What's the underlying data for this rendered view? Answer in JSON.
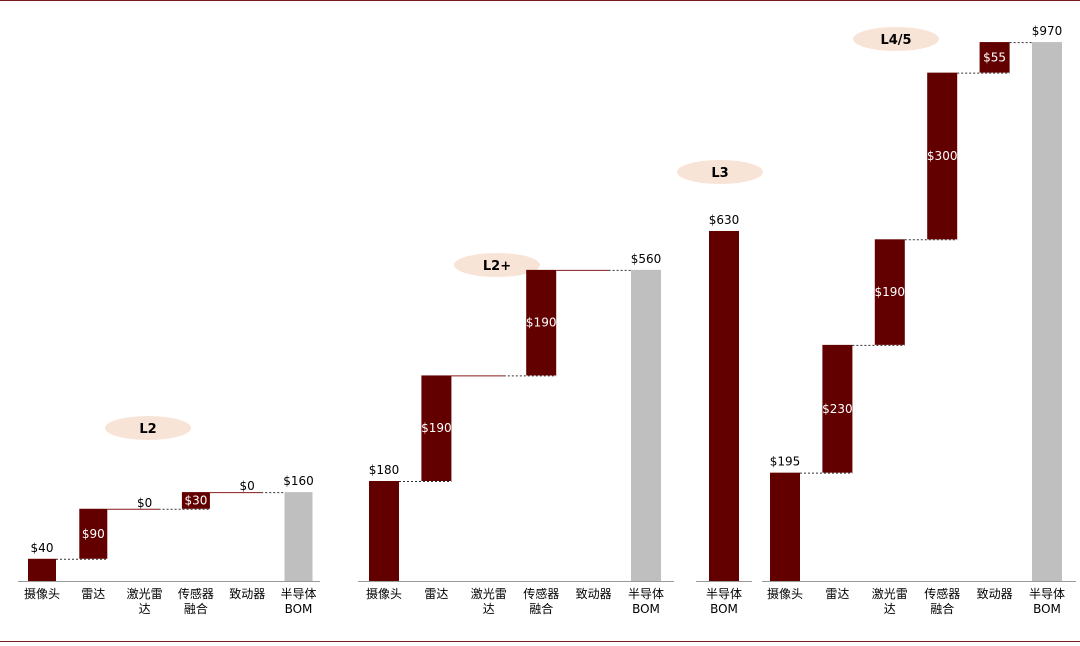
{
  "colors": {
    "bar": "#620000",
    "total": "#bfbfbf",
    "pill": "#f8e4d6",
    "rule": "#7b1a1a"
  },
  "chart_data": [
    {
      "type": "bar",
      "subtype": "waterfall",
      "title": "L2",
      "categories": [
        "摄像头",
        "雷达",
        "激光雷达",
        "传感器融合",
        "致动器",
        "半导体BOM"
      ],
      "values": [
        40,
        90,
        0,
        30,
        0,
        160
      ],
      "labels": [
        "$40",
        "$90",
        "$0",
        "$30",
        "$0",
        "$160"
      ],
      "kinds": [
        "step",
        "step",
        "step",
        "step",
        "step",
        "total"
      ]
    },
    {
      "type": "bar",
      "subtype": "waterfall",
      "title": "L2+",
      "categories": [
        "摄像头",
        "雷达",
        "激光雷达",
        "传感器融合",
        "致动器",
        "半导体BOM"
      ],
      "values": [
        180,
        190,
        0,
        190,
        0,
        560
      ],
      "labels": [
        "$180",
        "$190",
        "",
        "$190",
        "",
        "$560"
      ],
      "kinds": [
        "step",
        "step",
        "step",
        "step",
        "step",
        "total"
      ]
    },
    {
      "type": "bar",
      "subtype": "waterfall",
      "title": "L3",
      "categories": [
        "半导体BOM"
      ],
      "values": [
        630
      ],
      "labels": [
        "$630"
      ],
      "kinds": [
        "totaldark"
      ]
    },
    {
      "type": "bar",
      "subtype": "waterfall",
      "title": "L4/5",
      "categories": [
        "摄像头",
        "雷达",
        "激光雷达",
        "传感器融合",
        "致动器",
        "半导体BOM"
      ],
      "values": [
        195,
        230,
        190,
        300,
        55,
        970
      ],
      "labels": [
        "$195",
        "$230",
        "$190",
        "$300",
        "$55",
        "$970"
      ],
      "kinds": [
        "step",
        "step",
        "step",
        "step",
        "step",
        "total"
      ]
    }
  ]
}
